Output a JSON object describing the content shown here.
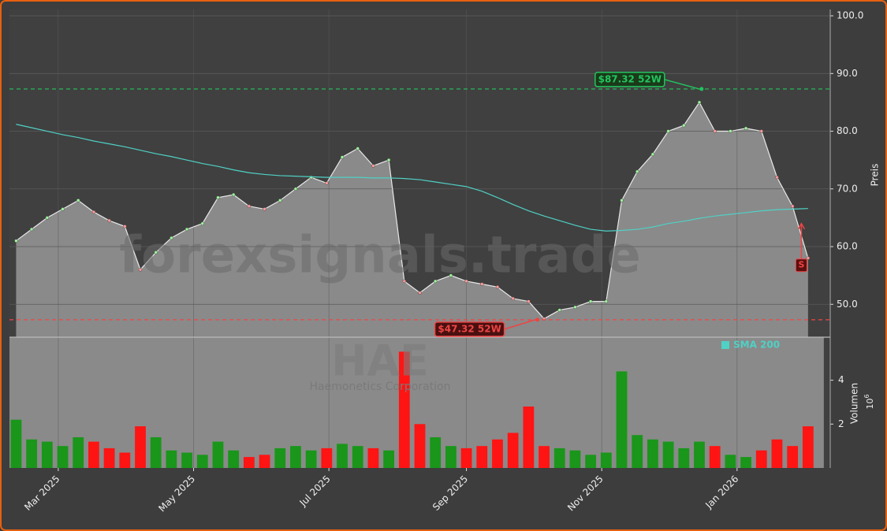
{
  "chart_data": {
    "type": "stock",
    "watermark": "forexsignals.trade",
    "ticker": "HAE",
    "company": "Haemonetics Corporation",
    "y_label": "Preis",
    "volume_label": "Volumen",
    "volume_exponent_base": "10",
    "volume_exponent": "6",
    "x": [
      "2025-02-10",
      "2025-02-17",
      "2025-02-24",
      "2025-03-03",
      "2025-03-10",
      "2025-03-17",
      "2025-03-24",
      "2025-03-31",
      "2025-04-07",
      "2025-04-14",
      "2025-04-21",
      "2025-04-28",
      "2025-05-05",
      "2025-05-12",
      "2025-05-19",
      "2025-05-26",
      "2025-06-02",
      "2025-06-09",
      "2025-06-16",
      "2025-06-23",
      "2025-06-30",
      "2025-07-07",
      "2025-07-14",
      "2025-07-21",
      "2025-07-28",
      "2025-08-04",
      "2025-08-11",
      "2025-08-18",
      "2025-08-25",
      "2025-09-01",
      "2025-09-08",
      "2025-09-15",
      "2025-09-22",
      "2025-09-29",
      "2025-10-06",
      "2025-10-13",
      "2025-10-20",
      "2025-10-27",
      "2025-11-03",
      "2025-11-10",
      "2025-11-17",
      "2025-11-24",
      "2025-12-01",
      "2025-12-08",
      "2025-12-15",
      "2025-12-22",
      "2025-12-29",
      "2026-01-05",
      "2026-01-12",
      "2026-01-19",
      "2026-01-26",
      "2026-02-02"
    ],
    "series": [
      {
        "name": "Close",
        "color": "#e8e8e8",
        "values": [
          61,
          63,
          65,
          66.5,
          68,
          66,
          64.5,
          63.5,
          56,
          59,
          61.5,
          63,
          64,
          68.5,
          69,
          67,
          66.5,
          68,
          70,
          72,
          71,
          75.5,
          77,
          74,
          75,
          54,
          52,
          54,
          55,
          54,
          53.5,
          53,
          51,
          50.5,
          47.5,
          49,
          49.5,
          50.5,
          50.5,
          68,
          73,
          76,
          80,
          81,
          85,
          80,
          80,
          80.5,
          80,
          72,
          67,
          58
        ]
      },
      {
        "name": "SMA 200",
        "color": "#4fd1c5",
        "values": [
          81.2,
          80.6,
          80,
          79.4,
          78.9,
          78.3,
          77.8,
          77.3,
          76.7,
          76.1,
          75.6,
          75,
          74.4,
          73.9,
          73.3,
          72.8,
          72.5,
          72.3,
          72.2,
          72.1,
          72,
          72,
          72,
          71.9,
          71.9,
          71.8,
          71.6,
          71.2,
          70.8,
          70.4,
          69.6,
          68.5,
          67.3,
          66.2,
          65.3,
          64.5,
          63.7,
          63,
          62.7,
          62.8,
          63,
          63.4,
          64,
          64.4,
          64.9,
          65.3,
          65.6,
          65.9,
          66.2,
          66.4,
          66.5,
          66.6
        ]
      },
      {
        "name": "Volumen",
        "axis": "volume",
        "color_up": "#1a961a",
        "color_down": "#ff1414",
        "values": [
          2.2,
          1.3,
          1.2,
          1.0,
          1.4,
          1.2,
          0.9,
          0.7,
          1.9,
          1.4,
          0.8,
          0.7,
          0.6,
          1.2,
          0.8,
          0.5,
          0.6,
          0.9,
          1.0,
          0.8,
          0.9,
          1.1,
          1.0,
          0.9,
          0.8,
          5.3,
          2.0,
          1.4,
          1.0,
          0.9,
          1.0,
          1.3,
          1.6,
          2.8,
          1.0,
          0.9,
          0.8,
          0.6,
          0.7,
          4.4,
          1.5,
          1.3,
          1.2,
          0.9,
          1.2,
          1.0,
          0.6,
          0.5,
          0.8,
          1.3,
          1.0,
          1.9
        ]
      }
    ],
    "annotations": [
      {
        "label": "$87.32 52W",
        "value": 87.32,
        "date": "2025-12-16",
        "color": "#22c55e"
      },
      {
        "label": "$47.32 52W",
        "value": 47.32,
        "date": "2025-10-03",
        "color": "#ef4444"
      }
    ],
    "signals": [
      {
        "label": "S",
        "date": "2026-01-30",
        "value": 64
      }
    ],
    "legend": "SMA 200",
    "xlim": [
      "2025-02-07",
      "2026-02-12"
    ],
    "xticks": [
      {
        "value": "2025-03-01",
        "label": "Mar 2025"
      },
      {
        "value": "2025-05-01",
        "label": "May 2025"
      },
      {
        "value": "2025-07-01",
        "label": "Jul 2025"
      },
      {
        "value": "2025-09-01",
        "label": "Sep 2025"
      },
      {
        "value": "2025-11-01",
        "label": "Nov 2025"
      },
      {
        "value": "2026-01-01",
        "label": "Jan 2026"
      }
    ],
    "ylim": [
      44.3,
      101.1
    ],
    "yticks": [
      {
        "value": 50,
        "label": "50.0"
      },
      {
        "value": 60,
        "label": "60.0"
      },
      {
        "value": 70,
        "label": "70.0"
      },
      {
        "value": 80,
        "label": "80.0"
      },
      {
        "value": 90,
        "label": "90.0"
      },
      {
        "value": 100,
        "label": "100.0"
      }
    ],
    "y2lim": [
      0,
      5.96
    ],
    "y2ticks": [
      2,
      4
    ],
    "grid": true
  }
}
